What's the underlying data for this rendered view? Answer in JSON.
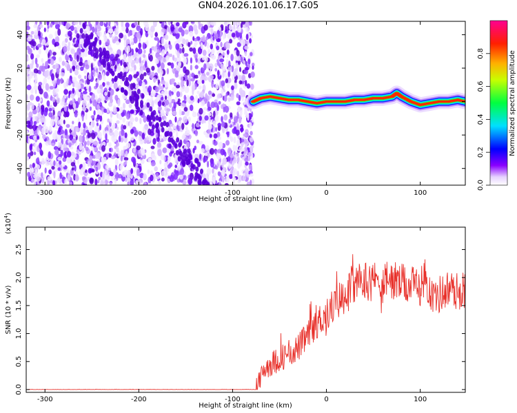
{
  "title": "GN04.2026.101.06.17.G05",
  "colors": {
    "snr_line": "#e8302a",
    "axis": "#000000",
    "scatter": "#6a00e6"
  },
  "chart_data": [
    {
      "type": "heatmap",
      "xlabel": "Height of straight line (km)",
      "ylabel": "Frequency (Hz)",
      "xlim": [
        -320,
        148
      ],
      "ylim": [
        -50,
        48
      ],
      "xticks": [
        -300,
        -200,
        -100,
        0,
        100
      ],
      "yticks": [
        -40,
        -20,
        0,
        20,
        40
      ],
      "noise_region": {
        "x_range": [
          -320,
          -78
        ],
        "y_range": [
          -50,
          48
        ]
      },
      "ridge": {
        "x": [
          -78,
          -70,
          -60,
          -50,
          -40,
          -30,
          -20,
          -10,
          0,
          10,
          20,
          30,
          40,
          50,
          60,
          70,
          75,
          80,
          90,
          100,
          110,
          120,
          130,
          140,
          148
        ],
        "y": [
          0,
          2,
          3,
          2,
          1,
          1,
          0,
          -1,
          0,
          0,
          0,
          1,
          1,
          2,
          2,
          3,
          5,
          3,
          0,
          -2,
          -1,
          0,
          0,
          1,
          0
        ]
      },
      "colorbar": {
        "label": "Normalized spectral amplitude",
        "range": [
          0,
          1
        ],
        "ticks": [
          "0.0",
          "0.2",
          "0.4",
          "0.6",
          "0.8"
        ]
      }
    },
    {
      "type": "line",
      "xlabel": "Height of straight line (km)",
      "ylabel": "SNR (10 * v/v)",
      "scale_label": "(x10",
      "scale_exp": "4",
      "scale_close": ")",
      "xlim": [
        -320,
        148
      ],
      "ylim": [
        -0.05,
        2.9
      ],
      "xticks": [
        -300,
        -200,
        -100,
        0,
        100
      ],
      "yticks": [
        "0.0",
        "0.5",
        "1.0",
        "1.5",
        "2.0",
        "2.5"
      ],
      "series": [
        {
          "x": [
            -320,
            -100,
            -76,
            -70,
            -65,
            -60,
            -50,
            -40,
            -30,
            -20,
            -10,
            0,
            10,
            20,
            30,
            40,
            50,
            60,
            70,
            80,
            90,
            100,
            105,
            110,
            115,
            120,
            130,
            140,
            148
          ],
          "y": [
            0.0,
            0.0,
            0.0,
            0.2,
            0.4,
            0.45,
            0.55,
            0.65,
            0.75,
            0.95,
            1.2,
            1.35,
            1.55,
            1.7,
            1.85,
            1.95,
            1.95,
            1.9,
            1.95,
            1.9,
            1.85,
            1.85,
            2.0,
            1.8,
            1.6,
            1.7,
            1.8,
            1.75,
            1.8
          ]
        }
      ]
    }
  ]
}
